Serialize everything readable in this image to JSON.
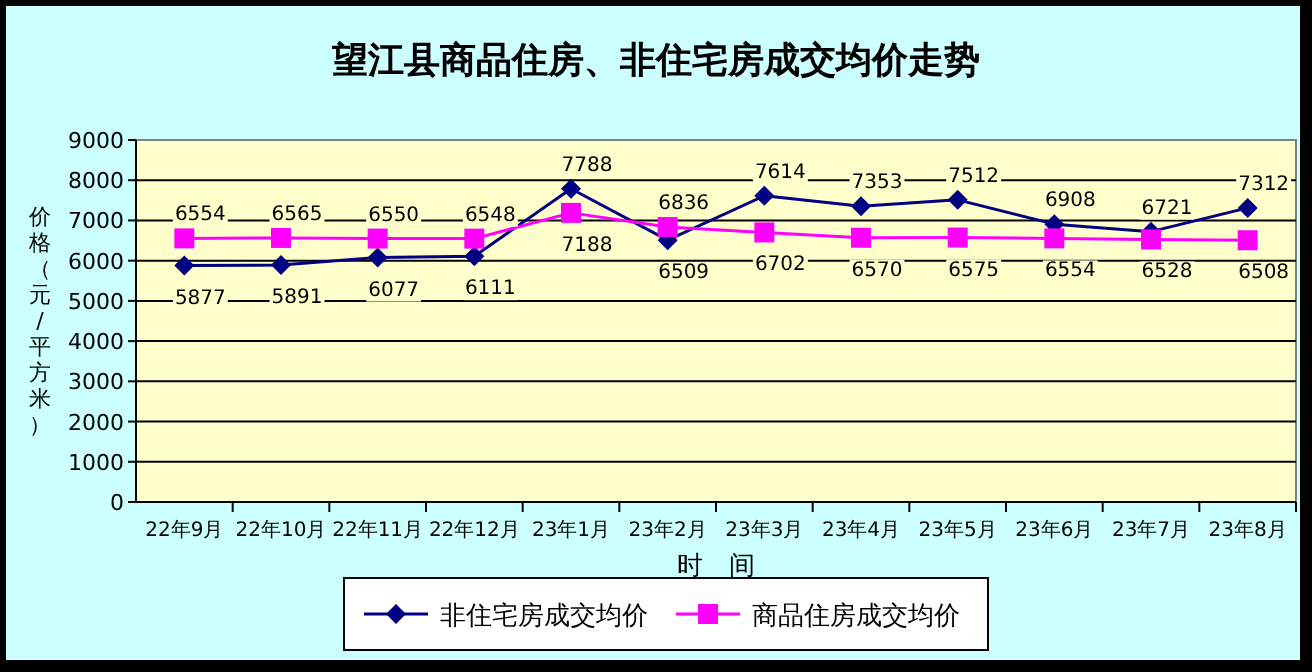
{
  "chart_data": {
    "type": "line",
    "title": "望江县商品住房、非住宅房成交均价走势",
    "xlabel": "时　间",
    "ylabel": "价格（元/平方米）",
    "categories": [
      "22年9月",
      "22年10月",
      "22年11月",
      "22年12月",
      "23年1月",
      "23年2月",
      "23年3月",
      "23年4月",
      "23年5月",
      "23年6月",
      "23年7月",
      "23年8月"
    ],
    "series": [
      {
        "name": "非住宅房成交均价",
        "color": "#000080",
        "marker": "diamond",
        "values": [
          5877,
          5891,
          6077,
          6111,
          7788,
          6509,
          7614,
          7353,
          7512,
          6908,
          6721,
          7312
        ]
      },
      {
        "name": "商品住房成交均价",
        "color": "#ff00ff",
        "marker": "square",
        "values": [
          6554,
          6565,
          6550,
          6548,
          7188,
          6836,
          6702,
          6570,
          6575,
          6554,
          6528,
          6508
        ]
      }
    ],
    "ylim": [
      0,
      9000
    ],
    "yticks": [
      0,
      1000,
      2000,
      3000,
      4000,
      5000,
      6000,
      7000,
      8000,
      9000
    ],
    "grid": "y",
    "legend": "bottom",
    "data_labels": true
  }
}
